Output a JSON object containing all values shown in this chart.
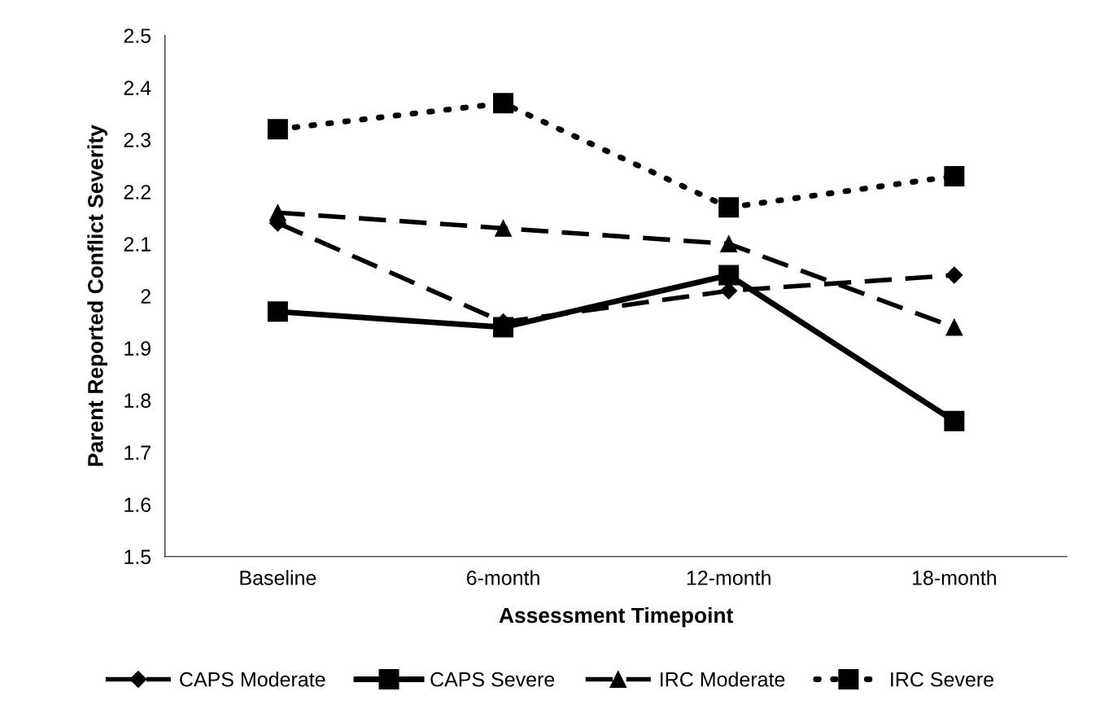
{
  "chart_data": {
    "type": "line",
    "xlabel": "Assessment Timepoint",
    "ylabel": "Parent Reported Conflict Severity",
    "categories": [
      "Baseline",
      "6-month",
      "12-month",
      "18-month"
    ],
    "series": [
      {
        "name": "CAPS Moderate",
        "color": "#000000",
        "marker": "diamond",
        "line_style": "dashed",
        "values": [
          2.14,
          1.95,
          2.01,
          2.04
        ]
      },
      {
        "name": "CAPS Severe",
        "color": "#000000",
        "marker": "square",
        "line_style": "solid",
        "values": [
          1.97,
          1.94,
          2.04,
          1.76
        ]
      },
      {
        "name": "IRC Moderate",
        "color": "#000000",
        "marker": "triangle",
        "line_style": "dashed",
        "values": [
          2.16,
          2.13,
          2.1,
          1.94
        ]
      },
      {
        "name": "IRC Severe",
        "color": "#000000",
        "marker": "square",
        "line_style": "dotted",
        "values": [
          2.32,
          2.37,
          2.17,
          2.23
        ]
      }
    ],
    "ylim": [
      1.5,
      2.5
    ],
    "yticks": [
      1.5,
      1.6,
      1.7,
      1.8,
      1.9,
      2,
      2.1,
      2.2,
      2.3,
      2.4,
      2.5
    ],
    "grid": false,
    "legend": "bottom"
  }
}
